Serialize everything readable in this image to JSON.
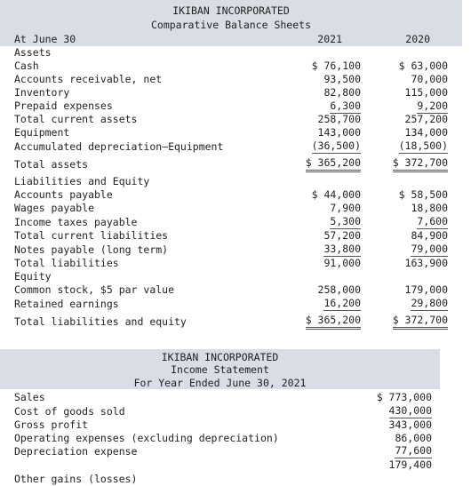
{
  "balance": {
    "title": "IKIBAN INCORPORATED",
    "subtitle": "Comparative Balance Sheets",
    "date_label": "At June 30",
    "col1": "2021",
    "col2": "2020",
    "rows": [
      {
        "label": "Assets",
        "v1": "",
        "v2": ""
      },
      {
        "label": "Cash",
        "v1": "$ 76,100",
        "v2": "$ 63,000"
      },
      {
        "label": "Accounts receivable, net",
        "v1": "93,500",
        "v2": "70,000"
      },
      {
        "label": "Inventory",
        "v1": "82,800",
        "v2": "115,000"
      },
      {
        "label": "Prepaid expenses",
        "v1": "6,300",
        "v2": "9,200"
      },
      {
        "label": "Total current assets",
        "v1": "258,700",
        "v2": "257,200"
      },
      {
        "label": "Equipment",
        "v1": "143,000",
        "v2": "134,000"
      },
      {
        "label": "Accumulated depreciation–Equipment",
        "v1": "(36,500)",
        "v2": "(18,500)"
      },
      {
        "label": "Total assets",
        "v1": "$ 365,200",
        "v2": "$ 372,700"
      },
      {
        "label": "Liabilities and Equity",
        "v1": "",
        "v2": ""
      },
      {
        "label": "Accounts payable",
        "v1": "$ 44,000",
        "v2": "$ 58,500"
      },
      {
        "label": "Wages payable",
        "v1": "7,900",
        "v2": "18,800"
      },
      {
        "label": "Income taxes payable",
        "v1": "5,300",
        "v2": "7,600"
      },
      {
        "label": "Total current liabilities",
        "v1": "57,200",
        "v2": "84,900"
      },
      {
        "label": "Notes payable (long term)",
        "v1": "33,800",
        "v2": "79,000"
      },
      {
        "label": "Total liabilities",
        "v1": "91,000",
        "v2": "163,900"
      },
      {
        "label": "Equity",
        "v1": "",
        "v2": ""
      },
      {
        "label": "Common stock, $5 par value",
        "v1": "258,000",
        "v2": "179,000"
      },
      {
        "label": "Retained earnings",
        "v1": "16,200",
        "v2": "29,800"
      },
      {
        "label": "Total liabilities and equity",
        "v1": "$ 365,200",
        "v2": "$ 372,700"
      }
    ]
  },
  "income": {
    "title": "IKIBAN INCORPORATED",
    "subtitle": "Income Statement",
    "period": "For Year Ended June 30, 2021",
    "rows": [
      {
        "label": "Sales",
        "v": "$ 773,000"
      },
      {
        "label": "Cost of goods sold",
        "v": "430,000"
      },
      {
        "label": "Gross profit",
        "v": "343,000"
      },
      {
        "label": "Operating expenses (excluding depreciation)",
        "v": "86,000"
      },
      {
        "label": "Depreciation expense",
        "v": "77,600"
      },
      {
        "label": "",
        "v": "179,400"
      },
      {
        "label": "Other gains (losses)",
        "v": ""
      }
    ]
  }
}
